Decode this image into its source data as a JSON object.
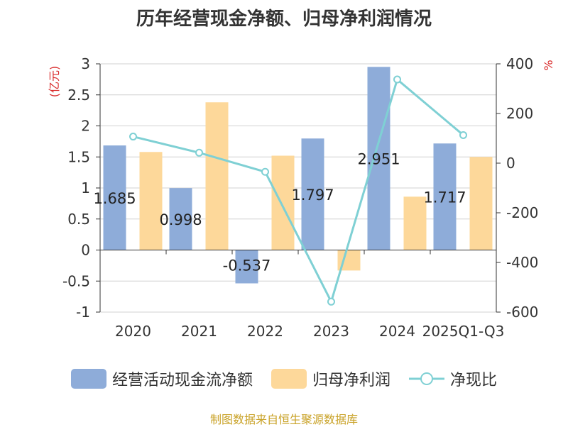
{
  "chart_data": {
    "type": "bar",
    "title": "历年经营现金净额、归母净利润情况",
    "categories": [
      "2020",
      "2021",
      "2022",
      "2023",
      "2024",
      "2025Q1-Q3"
    ],
    "ylabel": "(亿元)",
    "y2label": "%",
    "ylim": [
      -1,
      3
    ],
    "yticks": [
      "3",
      "2.5",
      "2",
      "1.5",
      "1",
      "0.5",
      "0",
      "-0.5",
      "-1"
    ],
    "y2lim": [
      -600,
      400
    ],
    "y2ticks": [
      "400",
      "200",
      "0",
      "-200",
      "-400",
      "-600"
    ],
    "series": [
      {
        "name": "经营活动现金流净额",
        "type": "bar",
        "color": "#8eacd9",
        "values": [
          1.685,
          0.998,
          -0.537,
          1.797,
          2.951,
          1.717
        ],
        "labels": [
          "1.685",
          "0.998",
          "-0.537",
          "1.797",
          "2.951",
          "1.717"
        ]
      },
      {
        "name": "归母净利润",
        "type": "bar",
        "color": "#fdd89a",
        "values": [
          1.58,
          2.38,
          1.52,
          -0.33,
          0.86,
          1.5
        ]
      },
      {
        "name": "净现比",
        "type": "line",
        "color": "#7fd0d4",
        "axis": "right",
        "values": [
          107,
          42,
          -35,
          -558,
          337,
          113
        ]
      }
    ],
    "source": "制图数据来自恒生聚源数据库"
  }
}
